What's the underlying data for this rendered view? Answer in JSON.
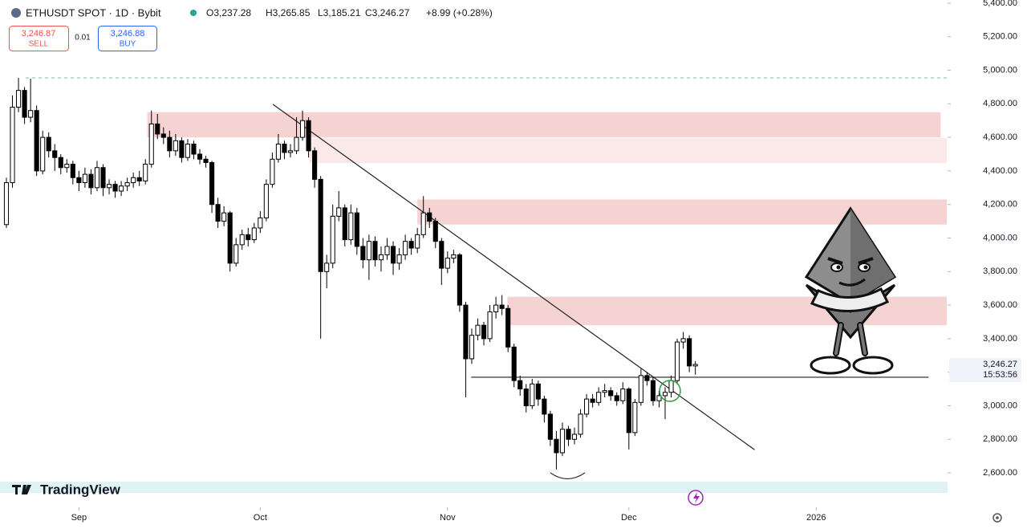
{
  "header": {
    "symbol": "ETHUSDT SPOT · 1D · Bybit",
    "open": "O3,237.28",
    "high": "H3,265.85",
    "low": "L3,185.21",
    "close": "C3,246.27",
    "change": "+8.99 (+0.28%)",
    "sell_price": "3,246.87",
    "sell": "SELL",
    "spread": "0.01",
    "buy_price": "3,246.88",
    "buy": "BUY",
    "last_price": "3,246.27",
    "countdown": "15:53:56",
    "brand": "TradingView"
  },
  "chart_data": {
    "type": "candlestick",
    "bull_color": "#ffffff",
    "bear_color": "#000000",
    "outline_color": "#000000",
    "xlim": [
      -1.06,
      155.6
    ],
    "xticks": [
      {
        "value": 12,
        "label": "Sep"
      },
      {
        "value": 42,
        "label": "Oct"
      },
      {
        "value": 73,
        "label": "Nov"
      },
      {
        "value": 103,
        "label": "Dec"
      },
      {
        "value": 134,
        "label": "2026"
      }
    ],
    "ylim": [
      2404,
      5419
    ],
    "yticks": [
      {
        "value": 2600,
        "label": "2,600.00"
      },
      {
        "value": 2800,
        "label": "2,800.00"
      },
      {
        "value": 3000,
        "label": "3,000.00"
      },
      {
        "value": 3200,
        "label": "3,200.00"
      },
      {
        "value": 3400,
        "label": "3,400.00"
      },
      {
        "value": 3600,
        "label": "3,600.00"
      },
      {
        "value": 3800,
        "label": "3,800.00"
      },
      {
        "value": 4000,
        "label": "4,000.00"
      },
      {
        "value": 4200,
        "label": "4,200.00"
      },
      {
        "value": 4400,
        "label": "4,400.00"
      },
      {
        "value": 4600,
        "label": "4,600.00"
      },
      {
        "value": 4800,
        "label": "4,800.00"
      },
      {
        "value": 5000,
        "label": "5,000.00"
      },
      {
        "value": 5200,
        "label": "5,200.00"
      },
      {
        "value": 5400,
        "label": "5,400.00"
      }
    ],
    "open": [
      4080,
      4330,
      4780,
      4880,
      4720,
      4760,
      4400,
      4600,
      4520,
      4480,
      4420,
      4440,
      4360,
      4330,
      4380,
      4300,
      4420,
      4300,
      4320,
      4280,
      4310,
      4330,
      4360,
      4340,
      4440,
      4680,
      4620,
      4600,
      4520,
      4580,
      4480,
      4560,
      4500,
      4470,
      4450,
      4200,
      4100,
      4150,
      3850,
      3960,
      4020,
      3990,
      4060,
      4120,
      4320,
      4470,
      4560,
      4510,
      4520,
      4600,
      4700,
      4520,
      4350,
      3800,
      3850,
      4130,
      4180,
      3990,
      4150,
      3950,
      3870,
      3980,
      3870,
      3900,
      3950,
      3850,
      3900,
      3980,
      3940,
      4020,
      4150,
      4100,
      3980,
      3820,
      3880,
      3900,
      3600,
      3280,
      3420,
      3480,
      3400,
      3560,
      3600,
      3580,
      3350,
      3150,
      3100,
      3000,
      3130,
      3040,
      2950,
      2800,
      2720,
      2860,
      2800,
      2830,
      2950,
      3040,
      3020,
      3080,
      3090,
      3060,
      3030,
      3100,
      2840,
      3020,
      3180,
      3150,
      3030,
      3060,
      3080,
      3150,
      3380,
      3400,
      3237.28
    ],
    "high": [
      4360,
      4850,
      4955,
      4900,
      4950,
      4790,
      4640,
      4630,
      4560,
      4500,
      4470,
      4460,
      4400,
      4420,
      4410,
      4460,
      4440,
      4350,
      4340,
      4340,
      4360,
      4390,
      4400,
      4470,
      4760,
      4740,
      4660,
      4640,
      4620,
      4600,
      4590,
      4580,
      4530,
      4490,
      4460,
      4240,
      4190,
      4160,
      4000,
      4050,
      4060,
      4090,
      4160,
      4350,
      4510,
      4620,
      4580,
      4560,
      4720,
      4760,
      4720,
      4540,
      4370,
      3900,
      4200,
      4280,
      4200,
      4200,
      4180,
      4000,
      4020,
      4010,
      3950,
      4000,
      3980,
      3940,
      4020,
      4000,
      4060,
      4250,
      4180,
      4120,
      4000,
      3920,
      3930,
      3910,
      3620,
      3460,
      3520,
      3500,
      3600,
      3650,
      3660,
      3600,
      3370,
      3180,
      3130,
      3160,
      3150,
      3060,
      2970,
      2850,
      2900,
      2880,
      2870,
      2980,
      3070,
      3070,
      3110,
      3130,
      3110,
      3080,
      3140,
      3110,
      3040,
      3220,
      3200,
      3170,
      3090,
      3110,
      3180,
      3400,
      3440,
      3420,
      3265.85
    ],
    "low": [
      4060,
      4300,
      4750,
      4680,
      4690,
      4370,
      4380,
      4480,
      4400,
      4380,
      4390,
      4320,
      4280,
      4300,
      4260,
      4280,
      4250,
      4260,
      4240,
      4250,
      4280,
      4300,
      4310,
      4320,
      4420,
      4590,
      4560,
      4480,
      4490,
      4450,
      4460,
      4470,
      4440,
      4420,
      4150,
      4060,
      4070,
      3800,
      3830,
      3930,
      3950,
      3970,
      4030,
      4100,
      4300,
      4450,
      4470,
      4480,
      4500,
      4580,
      4480,
      4300,
      3400,
      3700,
      3820,
      4100,
      3950,
      3960,
      3900,
      3820,
      3750,
      3830,
      3800,
      3870,
      3780,
      3810,
      3870,
      3900,
      3910,
      4000,
      4060,
      3940,
      3720,
      3790,
      3850,
      3560,
      3050,
      3250,
      3390,
      3360,
      3380,
      3520,
      3540,
      3320,
      3110,
      3060,
      2960,
      2980,
      3000,
      2900,
      2760,
      2620,
      2700,
      2760,
      2770,
      2810,
      2930,
      2990,
      3000,
      3050,
      3030,
      3000,
      3010,
      2740,
      2820,
      3000,
      3120,
      3000,
      2990,
      2920,
      3050,
      3130,
      3340,
      3200,
      3185.21
    ],
    "close": [
      4330,
      4780,
      4880,
      4720,
      4760,
      4400,
      4600,
      4520,
      4480,
      4420,
      4440,
      4360,
      4330,
      4380,
      4300,
      4420,
      4300,
      4320,
      4280,
      4310,
      4330,
      4360,
      4340,
      4440,
      4680,
      4620,
      4600,
      4520,
      4580,
      4480,
      4560,
      4500,
      4470,
      4450,
      4200,
      4100,
      4150,
      3850,
      3960,
      4020,
      3990,
      4060,
      4120,
      4320,
      4470,
      4560,
      4510,
      4520,
      4600,
      4700,
      4520,
      4350,
      3800,
      3850,
      4130,
      4180,
      3990,
      4150,
      3950,
      3870,
      3980,
      3870,
      3900,
      3950,
      3850,
      3900,
      3980,
      3940,
      4020,
      4150,
      4100,
      3980,
      3820,
      3880,
      3900,
      3600,
      3280,
      3420,
      3480,
      3400,
      3560,
      3600,
      3580,
      3350,
      3150,
      3100,
      3000,
      3130,
      3040,
      2950,
      2800,
      2720,
      2860,
      2800,
      2830,
      2950,
      3040,
      3020,
      3080,
      3090,
      3060,
      3030,
      3100,
      2840,
      3020,
      3180,
      3150,
      3030,
      3060,
      3080,
      3150,
      3380,
      3400,
      3237.28,
      3246.27
    ],
    "zones": [
      {
        "from": 23.3,
        "to": 154.6,
        "low": 4600,
        "high": 4750,
        "color": "#f6d3d3"
      },
      {
        "from": 50.1,
        "to": 155.6,
        "low": 4447,
        "high": 4595,
        "color": "#fbe9e9"
      },
      {
        "from": 68.0,
        "to": 155.6,
        "low": 4080,
        "high": 4230,
        "color": "#f6d3d3"
      },
      {
        "from": 82.9,
        "to": 155.6,
        "low": 3480,
        "high": 3650,
        "color": "#f6d3d3"
      }
    ],
    "trendline": {
      "from": 44.1,
      "to": 123.8,
      "start": 4797,
      "end": 2738
    },
    "support": {
      "from": 76.9,
      "to": 152.6,
      "value": 3170
    },
    "high_line": {
      "from": 3.2,
      "to": 155.6,
      "value": 4955
    }
  }
}
